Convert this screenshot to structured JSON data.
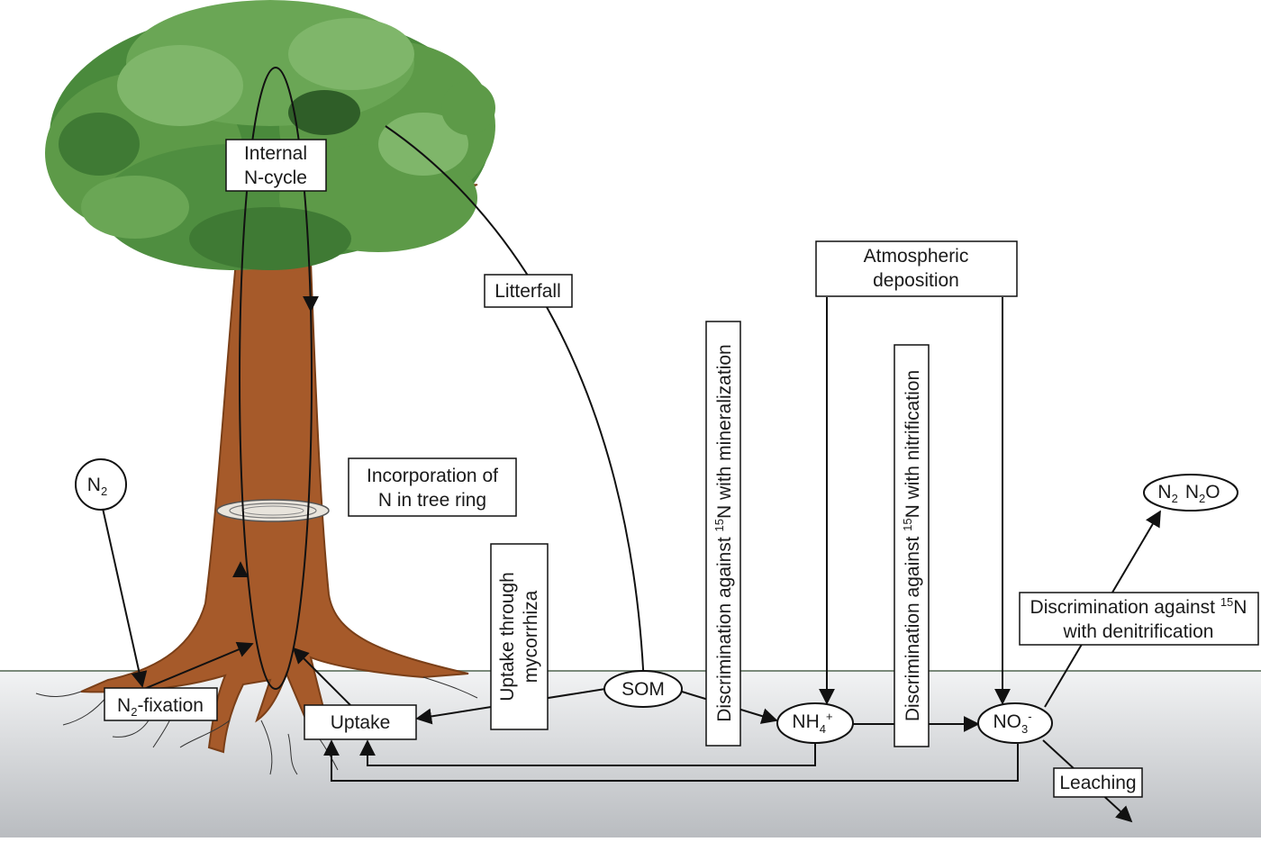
{
  "colors": {
    "canopy_dark": "#3f7a34",
    "canopy_mid": "#5d9a48",
    "canopy_light": "#7fb66a",
    "trunk": "#a65a2a",
    "trunk_dark": "#7a3f18",
    "soil_top": "#f2f3f4",
    "soil_bottom": "#b9bcc0",
    "ground_line": "#7a8a7a",
    "arrow": "#111111"
  },
  "labels": {
    "internal_cycle": {
      "line1": "Internal",
      "line2": "N-cycle"
    },
    "litterfall": "Litterfall",
    "atmospheric": {
      "line1": "Atmospheric",
      "line2": "deposition"
    },
    "tree_ring": {
      "line1": "Incorporation of",
      "line2": "N in tree ring"
    },
    "mycorrhiza": {
      "line1": "Uptake through",
      "line2": "mycorrhiza"
    },
    "mineralization": {
      "pre": "Discrimination against ",
      "sup": "15",
      "post": "N with mineralization"
    },
    "nitrification": {
      "pre": "Discrimination against ",
      "sup": "15",
      "post": "N with nitrification"
    },
    "denitrification": {
      "line1_pre": "Discrimination against ",
      "line1_sup": "15",
      "line1_post": "N",
      "line2": "with denitrification"
    },
    "n2_node": {
      "base": "N",
      "sub": "2"
    },
    "n2_fixation": {
      "base": "N",
      "sub": "2",
      "rest": "-fixation"
    },
    "uptake": "Uptake",
    "som": "SOM",
    "nh4": {
      "base": "NH",
      "sub": "4",
      "sup": "+"
    },
    "no3": {
      "base": "NO",
      "sub": "3",
      "sup": "-"
    },
    "gases": {
      "a": "N",
      "a_sub": "2",
      "b": "N",
      "b_sub": "2",
      "b_rest": "O"
    },
    "leaching": "Leaching"
  }
}
